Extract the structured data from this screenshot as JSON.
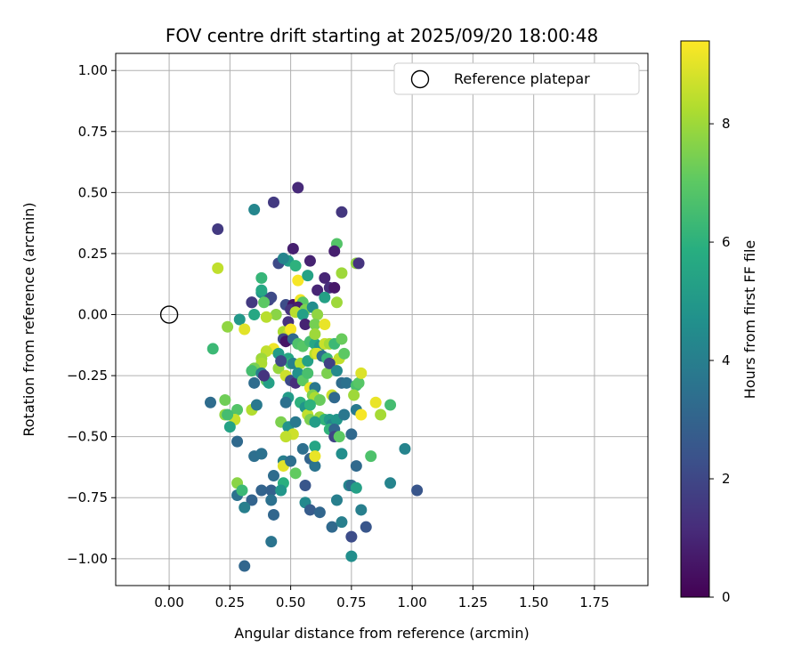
{
  "chart_data": {
    "type": "scatter",
    "title": "FOV centre drift starting at 2025/09/20 18:00:48",
    "xlabel": "Angular distance from reference (arcmin)",
    "ylabel": "Rotation from reference (arcmin)",
    "xlim": [
      -0.22,
      1.97
    ],
    "ylim": [
      -1.11,
      1.07
    ],
    "xticks": [
      "0.00",
      "0.25",
      "0.50",
      "0.75",
      "1.00",
      "1.25",
      "1.50",
      "1.75"
    ],
    "yticks": [
      "−1.00",
      "−0.75",
      "−0.50",
      "−0.25",
      "0.00",
      "0.25",
      "0.50",
      "0.75",
      "1.00"
    ],
    "grid": true,
    "legend": {
      "placement": "top-right",
      "entries": [
        {
          "label": "Reference platepar",
          "marker": "open-circle"
        }
      ]
    },
    "reference_point": {
      "x": 0.0,
      "y": 0.0
    },
    "colorbar": {
      "label": "Hours from first FF file",
      "range": [
        0,
        9.4
      ],
      "ticks": [
        "0",
        "2",
        "4",
        "6",
        "8"
      ],
      "colormap": "viridis"
    },
    "points": [
      [
        0.53,
        0.52,
        1.1
      ],
      [
        0.43,
        0.46,
        1.6
      ],
      [
        0.71,
        0.42,
        1.5
      ],
      [
        0.35,
        0.43,
        4.3
      ],
      [
        0.2,
        0.35,
        1.6
      ],
      [
        0.51,
        0.27,
        0.8
      ],
      [
        0.69,
        0.29,
        6.8
      ],
      [
        0.77,
        0.21,
        7.8
      ],
      [
        0.78,
        0.21,
        1.4
      ],
      [
        0.68,
        0.26,
        0.8
      ],
      [
        0.58,
        0.22,
        0.9
      ],
      [
        0.45,
        0.21,
        2.1
      ],
      [
        0.49,
        0.22,
        5.1
      ],
      [
        0.47,
        0.23,
        4.2
      ],
      [
        0.2,
        0.19,
        8.5
      ],
      [
        0.38,
        0.15,
        6.2
      ],
      [
        0.71,
        0.17,
        8.0
      ],
      [
        0.64,
        0.15,
        1.0
      ],
      [
        0.53,
        0.14,
        9.3
      ],
      [
        0.57,
        0.16,
        5.4
      ],
      [
        0.52,
        0.2,
        6.0
      ],
      [
        0.66,
        0.11,
        1.2
      ],
      [
        0.68,
        0.11,
        0.6
      ],
      [
        0.61,
        0.1,
        1.0
      ],
      [
        0.38,
        0.09,
        4.8
      ],
      [
        0.38,
        0.1,
        5.6
      ],
      [
        0.34,
        0.05,
        1.3
      ],
      [
        0.34,
        0.05,
        1.6
      ],
      [
        0.41,
        0.06,
        1.9
      ],
      [
        0.42,
        0.07,
        2.1
      ],
      [
        0.39,
        0.05,
        7.0
      ],
      [
        0.48,
        0.04,
        2.2
      ],
      [
        0.51,
        0.04,
        0.5
      ],
      [
        0.54,
        0.06,
        9.2
      ],
      [
        0.55,
        0.05,
        6.9
      ],
      [
        0.5,
        0.02,
        1.4
      ],
      [
        0.53,
        0.03,
        0.8
      ],
      [
        0.56,
        0.02,
        7.5
      ],
      [
        0.59,
        0.03,
        4.6
      ],
      [
        0.61,
        0.0,
        7.8
      ],
      [
        0.64,
        0.07,
        5.3
      ],
      [
        0.69,
        0.05,
        8.0
      ],
      [
        0.35,
        0.0,
        5.6
      ],
      [
        0.44,
        0.0,
        7.7
      ],
      [
        0.52,
        0.01,
        8.4
      ],
      [
        0.55,
        0.0,
        5.3
      ],
      [
        0.29,
        -0.02,
        5.0
      ],
      [
        0.31,
        -0.06,
        9.0
      ],
      [
        0.24,
        -0.05,
        7.8
      ],
      [
        0.4,
        -0.01,
        8.4
      ],
      [
        0.49,
        -0.03,
        1.3
      ],
      [
        0.56,
        -0.04,
        0.9
      ],
      [
        0.6,
        -0.04,
        7.4
      ],
      [
        0.64,
        -0.04,
        9.1
      ],
      [
        0.18,
        -0.14,
        6.3
      ],
      [
        0.47,
        -0.07,
        8.2
      ],
      [
        0.49,
        -0.08,
        8.6
      ],
      [
        0.5,
        -0.06,
        9.3
      ],
      [
        0.47,
        -0.1,
        1.9
      ],
      [
        0.48,
        -0.11,
        0.5
      ],
      [
        0.51,
        -0.1,
        3.2
      ],
      [
        0.53,
        -0.12,
        6.7
      ],
      [
        0.55,
        -0.13,
        6.9
      ],
      [
        0.58,
        -0.11,
        6.5
      ],
      [
        0.6,
        -0.12,
        5.6
      ],
      [
        0.6,
        -0.08,
        8.0
      ],
      [
        0.62,
        -0.13,
        5.0
      ],
      [
        0.64,
        -0.12,
        8.6
      ],
      [
        0.66,
        -0.12,
        8.1
      ],
      [
        0.68,
        -0.12,
        6.3
      ],
      [
        0.71,
        -0.1,
        7.2
      ],
      [
        0.43,
        -0.14,
        9.2
      ],
      [
        0.45,
        -0.16,
        5.1
      ],
      [
        0.4,
        -0.15,
        8.5
      ],
      [
        0.38,
        -0.18,
        8.0
      ],
      [
        0.38,
        -0.2,
        8.2
      ],
      [
        0.49,
        -0.18,
        5.6
      ],
      [
        0.5,
        -0.2,
        6.1
      ],
      [
        0.45,
        -0.22,
        7.9
      ],
      [
        0.46,
        -0.19,
        2.0
      ],
      [
        0.51,
        -0.2,
        4.1
      ],
      [
        0.54,
        -0.2,
        8.3
      ],
      [
        0.57,
        -0.19,
        5.3
      ],
      [
        0.6,
        -0.16,
        8.4
      ],
      [
        0.61,
        -0.16,
        8.9
      ],
      [
        0.63,
        -0.17,
        3.3
      ],
      [
        0.65,
        -0.18,
        6.2
      ],
      [
        0.67,
        -0.2,
        9.4
      ],
      [
        0.7,
        -0.18,
        8.5
      ],
      [
        0.72,
        -0.16,
        7.0
      ],
      [
        0.35,
        -0.22,
        7.4
      ],
      [
        0.34,
        -0.23,
        6.5
      ],
      [
        0.38,
        -0.24,
        4.0
      ],
      [
        0.4,
        -0.27,
        7.1
      ],
      [
        0.41,
        -0.28,
        5.3
      ],
      [
        0.39,
        -0.25,
        1.4
      ],
      [
        0.35,
        -0.28,
        3.3
      ],
      [
        0.48,
        -0.25,
        8.7
      ],
      [
        0.5,
        -0.27,
        2.1
      ],
      [
        0.52,
        -0.28,
        1.2
      ],
      [
        0.53,
        -0.24,
        4.7
      ],
      [
        0.55,
        -0.27,
        7.0
      ],
      [
        0.57,
        -0.24,
        6.6
      ],
      [
        0.58,
        -0.3,
        9.1
      ],
      [
        0.6,
        -0.3,
        3.7
      ],
      [
        0.65,
        -0.24,
        7.5
      ],
      [
        0.66,
        -0.2,
        1.8
      ],
      [
        0.69,
        -0.23,
        4.4
      ],
      [
        0.71,
        -0.28,
        3.3
      ],
      [
        0.73,
        -0.28,
        3.5
      ],
      [
        0.77,
        -0.29,
        6.6
      ],
      [
        0.78,
        -0.28,
        6.9
      ],
      [
        0.79,
        -0.24,
        8.9
      ],
      [
        0.76,
        -0.33,
        8.0
      ],
      [
        0.49,
        -0.34,
        5.1
      ],
      [
        0.48,
        -0.36,
        3.5
      ],
      [
        0.54,
        -0.36,
        6.0
      ],
      [
        0.59,
        -0.33,
        7.5
      ],
      [
        0.6,
        -0.34,
        8.2
      ],
      [
        0.62,
        -0.35,
        7.2
      ],
      [
        0.67,
        -0.33,
        8.7
      ],
      [
        0.68,
        -0.34,
        3.2
      ],
      [
        0.17,
        -0.36,
        3.3
      ],
      [
        0.23,
        -0.35,
        7.3
      ],
      [
        0.23,
        -0.41,
        7.8
      ],
      [
        0.28,
        -0.39,
        6.8
      ],
      [
        0.27,
        -0.43,
        8.6
      ],
      [
        0.25,
        -0.46,
        5.4
      ],
      [
        0.24,
        -0.41,
        6.5
      ],
      [
        0.34,
        -0.39,
        8.3
      ],
      [
        0.36,
        -0.37,
        3.8
      ],
      [
        0.56,
        -0.38,
        4.9
      ],
      [
        0.57,
        -0.41,
        8.5
      ],
      [
        0.58,
        -0.37,
        6.0
      ],
      [
        0.62,
        -0.42,
        7.9
      ],
      [
        0.64,
        -0.43,
        6.1
      ],
      [
        0.66,
        -0.43,
        5.1
      ],
      [
        0.67,
        -0.45,
        4.3
      ],
      [
        0.69,
        -0.43,
        4.9
      ],
      [
        0.72,
        -0.41,
        3.7
      ],
      [
        0.77,
        -0.39,
        3.8
      ],
      [
        0.79,
        -0.41,
        9.3
      ],
      [
        0.85,
        -0.36,
        9.1
      ],
      [
        0.87,
        -0.41,
        8.1
      ],
      [
        0.91,
        -0.37,
        6.5
      ],
      [
        0.46,
        -0.44,
        7.5
      ],
      [
        0.49,
        -0.46,
        4.8
      ],
      [
        0.51,
        -0.49,
        8.7
      ],
      [
        0.52,
        -0.44,
        3.8
      ],
      [
        0.48,
        -0.5,
        8.5
      ],
      [
        0.58,
        -0.43,
        7.5
      ],
      [
        0.6,
        -0.44,
        5.2
      ],
      [
        0.66,
        -0.47,
        6.1
      ],
      [
        0.68,
        -0.47,
        3.1
      ],
      [
        0.68,
        -0.5,
        1.9
      ],
      [
        0.7,
        -0.5,
        7.0
      ],
      [
        0.75,
        -0.49,
        3.2
      ],
      [
        0.6,
        -0.54,
        5.5
      ],
      [
        0.28,
        -0.52,
        3.2
      ],
      [
        0.35,
        -0.58,
        3.4
      ],
      [
        0.38,
        -0.57,
        3.0
      ],
      [
        0.38,
        -0.57,
        3.5
      ],
      [
        0.47,
        -0.6,
        4.0
      ],
      [
        0.47,
        -0.62,
        9.0
      ],
      [
        0.5,
        -0.6,
        3.4
      ],
      [
        0.55,
        -0.55,
        3.4
      ],
      [
        0.58,
        -0.59,
        3.0
      ],
      [
        0.6,
        -0.62,
        3.6
      ],
      [
        0.6,
        -0.58,
        9.1
      ],
      [
        0.71,
        -0.57,
        4.6
      ],
      [
        0.77,
        -0.62,
        3.2
      ],
      [
        0.83,
        -0.58,
        6.7
      ],
      [
        0.97,
        -0.55,
        4.2
      ],
      [
        0.43,
        -0.66,
        3.3
      ],
      [
        0.47,
        -0.69,
        5.9
      ],
      [
        0.28,
        -0.69,
        7.7
      ],
      [
        0.28,
        -0.74,
        3.5
      ],
      [
        0.3,
        -0.72,
        6.3
      ],
      [
        0.34,
        -0.76,
        3.0
      ],
      [
        0.38,
        -0.72,
        3.0
      ],
      [
        0.42,
        -0.72,
        2.9
      ],
      [
        0.46,
        -0.72,
        4.9
      ],
      [
        0.52,
        -0.65,
        7.1
      ],
      [
        0.56,
        -0.7,
        2.5
      ],
      [
        0.56,
        -0.77,
        4.4
      ],
      [
        0.58,
        -0.8,
        2.7
      ],
      [
        0.62,
        -0.81,
        3.1
      ],
      [
        0.69,
        -0.76,
        4.0
      ],
      [
        0.74,
        -0.7,
        4.3
      ],
      [
        0.75,
        -0.7,
        3.3
      ],
      [
        0.77,
        -0.71,
        5.3
      ],
      [
        0.79,
        -0.8,
        4.0
      ],
      [
        0.91,
        -0.69,
        4.2
      ],
      [
        1.02,
        -0.72,
        2.5
      ],
      [
        0.31,
        -0.79,
        4.0
      ],
      [
        0.42,
        -0.76,
        3.5
      ],
      [
        0.43,
        -0.82,
        3.1
      ],
      [
        0.67,
        -0.87,
        3.2
      ],
      [
        0.71,
        -0.85,
        4.0
      ],
      [
        0.75,
        -0.91,
        2.2
      ],
      [
        0.81,
        -0.87,
        2.5
      ],
      [
        0.42,
        -0.93,
        3.6
      ],
      [
        0.75,
        -0.99,
        4.6
      ],
      [
        0.31,
        -1.03,
        3.1
      ]
    ]
  }
}
